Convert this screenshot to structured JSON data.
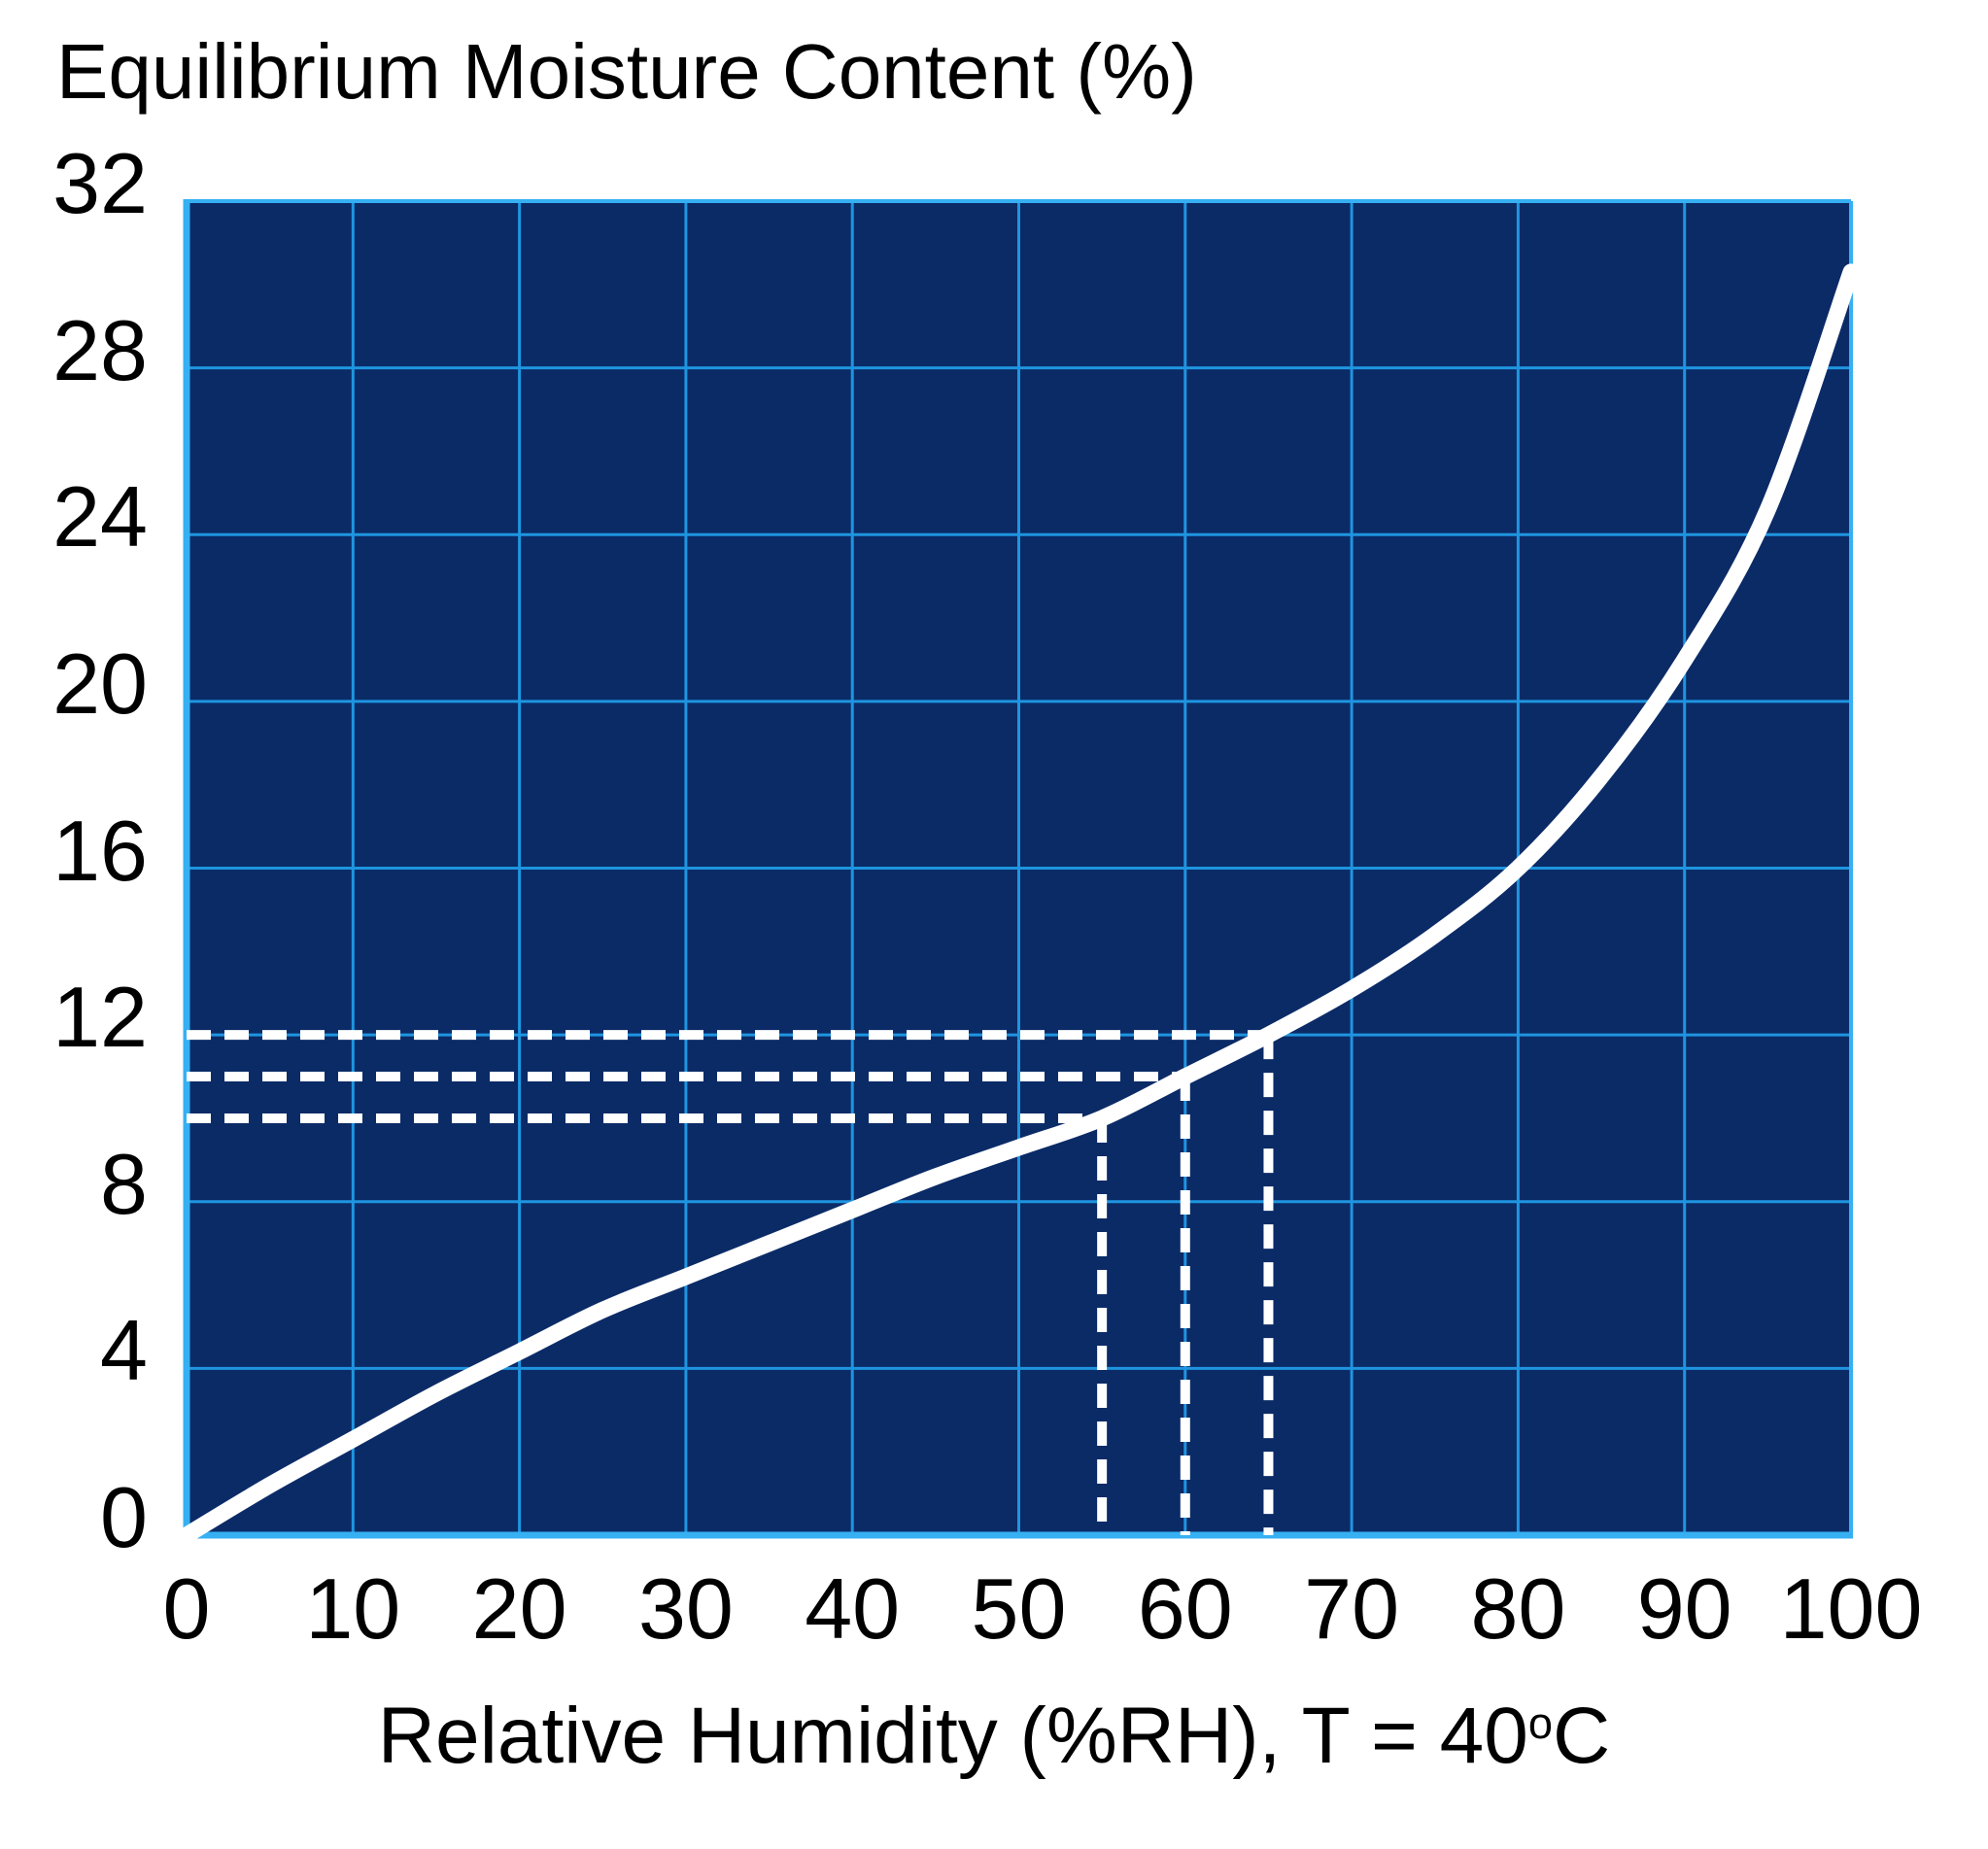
{
  "title": "Equilibrium Moisture Content (%)",
  "x_axis": {
    "label_prefix": "Relative Humidity (%RH), T = 40",
    "label_sup": "o",
    "label_suffix": "C",
    "ticks": [
      0,
      10,
      20,
      30,
      40,
      50,
      60,
      70,
      80,
      90,
      100
    ]
  },
  "y_axis": {
    "ticks": [
      0,
      4,
      8,
      12,
      16,
      20,
      24,
      28,
      32
    ]
  },
  "chart_data": {
    "type": "line",
    "title": "Equilibrium Moisture Content (%)",
    "xlabel": "Relative Humidity (%RH), T = 40°C",
    "ylabel": "Equilibrium Moisture Content (%)",
    "xlim": [
      0,
      100
    ],
    "ylim": [
      0,
      32
    ],
    "x_tick_step": 10,
    "y_tick_step": 4,
    "grid": "on",
    "legend": "none",
    "series": [
      {
        "name": "Equilibrium moisture content at T = 40°C",
        "x": [
          0,
          5,
          10,
          15,
          20,
          25,
          30,
          35,
          40,
          45,
          50,
          55,
          60,
          65,
          70,
          75,
          80,
          85,
          90,
          95,
          100
        ],
        "y": [
          0,
          1.2,
          2.3,
          3.4,
          4.4,
          5.4,
          6.2,
          7.0,
          7.8,
          8.6,
          9.3,
          10.0,
          11.0,
          12.0,
          13.1,
          14.4,
          16.0,
          18.2,
          21.0,
          24.6,
          30.3
        ]
      }
    ],
    "guides": {
      "horizontal": [
        {
          "emc": 12,
          "rh_end": 65
        },
        {
          "emc": 11,
          "rh_end": 60
        },
        {
          "emc": 10,
          "rh_end": 55
        }
      ],
      "vertical": [
        {
          "rh": 55,
          "emc_top": 10
        },
        {
          "rh": 60,
          "emc_top": 11
        },
        {
          "rh": 65,
          "emc_top": 12
        }
      ]
    },
    "colors": {
      "page_background": "#ffffff",
      "plot_background": "#0b2b67",
      "gridline": "#1f95e0",
      "axis_border": "#36b0f2",
      "curve": "#ffffff",
      "guide": "#ffffff",
      "text": "#000000"
    }
  }
}
